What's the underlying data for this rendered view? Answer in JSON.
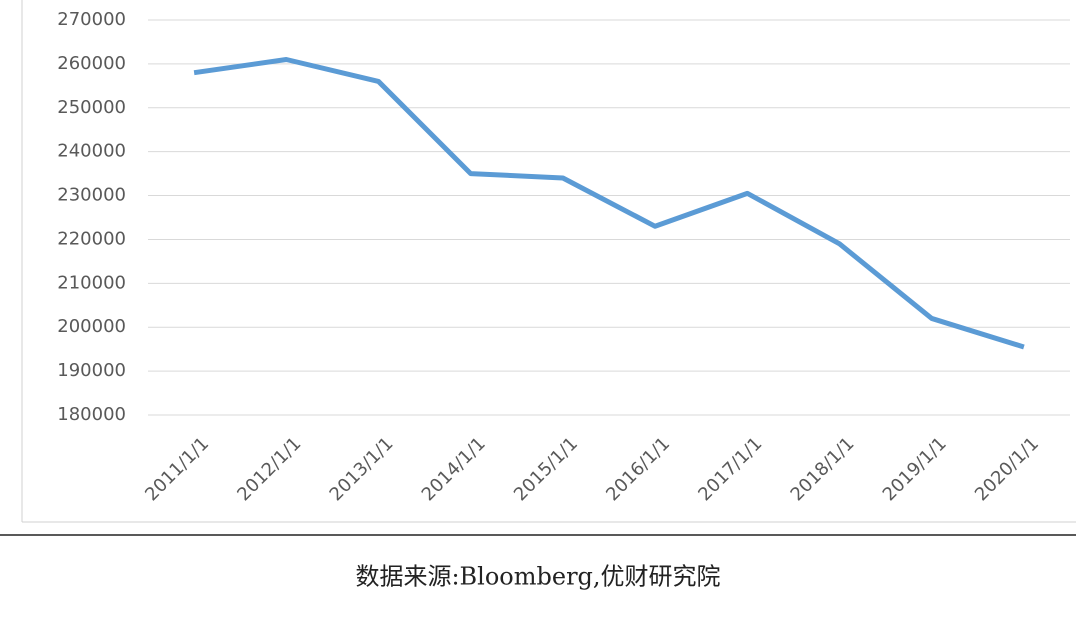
{
  "chart_data": {
    "type": "line",
    "categories": [
      "2011/1/1",
      "2012/1/1",
      "2013/1/1",
      "2014/1/1",
      "2015/1/1",
      "2016/1/1",
      "2017/1/1",
      "2018/1/1",
      "2019/1/1",
      "2020/1/1"
    ],
    "series": [
      {
        "color": "#5b9bd5",
        "values": [
          258000,
          261000,
          256000,
          235000,
          234000,
          223000,
          230500,
          219000,
          202000,
          195500
        ]
      }
    ],
    "ylim": [
      180000,
      270000
    ],
    "yticks": [
      180000,
      190000,
      200000,
      210000,
      220000,
      230000,
      240000,
      250000,
      260000,
      270000
    ],
    "grid": true,
    "source": "数据来源:Bloomberg,优财研究院"
  }
}
